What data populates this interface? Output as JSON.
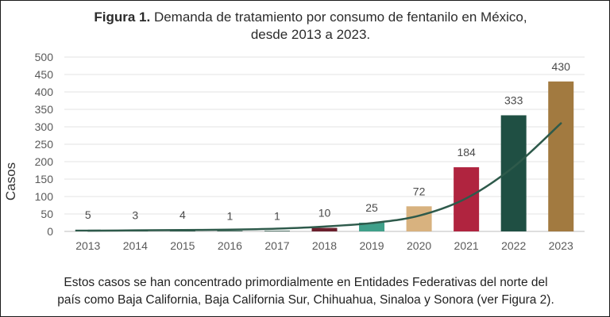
{
  "title": {
    "prefix": "Figura 1.",
    "line1": "Demanda de tratamiento por consumo de fentanilo en México,",
    "line2": "desde 2013 a 2023."
  },
  "caption": {
    "line1": "Estos casos se han concentrado primordialmente en Entidades Federativas del norte del",
    "line2": "país como Baja California, Baja California Sur, Chihuahua, Sinaloa y Sonora (ver Figura 2)."
  },
  "chart_data": {
    "type": "bar",
    "categories": [
      "2013",
      "2014",
      "2015",
      "2016",
      "2017",
      "2018",
      "2019",
      "2020",
      "2021",
      "2022",
      "2023"
    ],
    "values": [
      5,
      3,
      4,
      1,
      1,
      10,
      25,
      72,
      184,
      333,
      430
    ],
    "data_labels": [
      "5",
      "3",
      "4",
      "1",
      "1",
      "10",
      "25",
      "72",
      "184",
      "333",
      "430"
    ],
    "bar_colors": [
      "#2e5a4b",
      "#2e5a4b",
      "#2e5a4b",
      "#2e5a4b",
      "#2e5a4b",
      "#6b1f2c",
      "#3fa08a",
      "#d8b27f",
      "#b0243f",
      "#1f4f43",
      "#a27a40"
    ],
    "trendline": {
      "type": "exponential",
      "color": "#2e5a4b",
      "values": [
        2,
        3,
        4,
        5,
        8,
        14,
        24,
        45,
        95,
        185,
        310
      ]
    },
    "ylabel": "Casos",
    "xlabel": "",
    "ylim": [
      0,
      500
    ],
    "yticks": [
      0,
      50,
      100,
      150,
      200,
      250,
      300,
      350,
      400,
      450,
      500
    ],
    "grid": true
  }
}
